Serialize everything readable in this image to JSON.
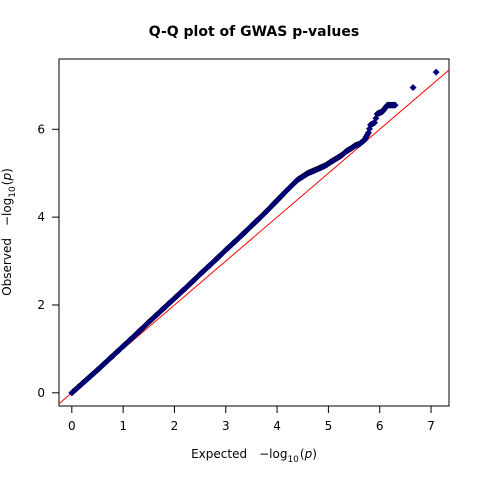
{
  "chart_data": {
    "type": "scatter",
    "title": "Q-Q plot of GWAS p-values",
    "xlabel": {
      "prefix": "Expected",
      "math": "−log",
      "sub": "10",
      "var": "p"
    },
    "ylabel": {
      "prefix": "Observed",
      "math": "−log",
      "sub": "10",
      "var": "p"
    },
    "xlim": [
      -0.25,
      7.35
    ],
    "ylim": [
      -0.3,
      7.6
    ],
    "xticks": [
      "0",
      "1",
      "2",
      "3",
      "4",
      "5",
      "6",
      "7"
    ],
    "yticks": [
      "0",
      "2",
      "4",
      "6"
    ],
    "grid": false,
    "colors": {
      "points": "#00008B",
      "reference_line": "#FF0000",
      "line_under_points": "#FF0000"
    },
    "reference_line": {
      "slope": 1,
      "intercept": 0
    },
    "series": [
      {
        "x": [
          0.0,
          0.25,
          0.5,
          0.75,
          1.0,
          1.25,
          1.5,
          1.75,
          2.0,
          2.25,
          2.5,
          2.75,
          3.0,
          3.25,
          3.5,
          3.75,
          4.0,
          4.2,
          4.4,
          4.6,
          4.8,
          4.95,
          5.05,
          5.15,
          5.25,
          5.35,
          5.45,
          5.52,
          5.6,
          5.7,
          5.78,
          5.82,
          5.9,
          5.95,
          6.05,
          6.15,
          6.3,
          6.65,
          7.1
        ],
        "y": [
          0.0,
          0.26,
          0.52,
          0.79,
          1.06,
          1.33,
          1.61,
          1.88,
          2.15,
          2.42,
          2.7,
          2.97,
          3.25,
          3.52,
          3.8,
          4.08,
          4.38,
          4.62,
          4.85,
          5.0,
          5.1,
          5.18,
          5.26,
          5.33,
          5.4,
          5.5,
          5.57,
          5.63,
          5.66,
          5.75,
          5.92,
          6.1,
          6.15,
          6.35,
          6.4,
          6.55,
          6.55,
          6.95,
          7.3
        ]
      }
    ]
  }
}
